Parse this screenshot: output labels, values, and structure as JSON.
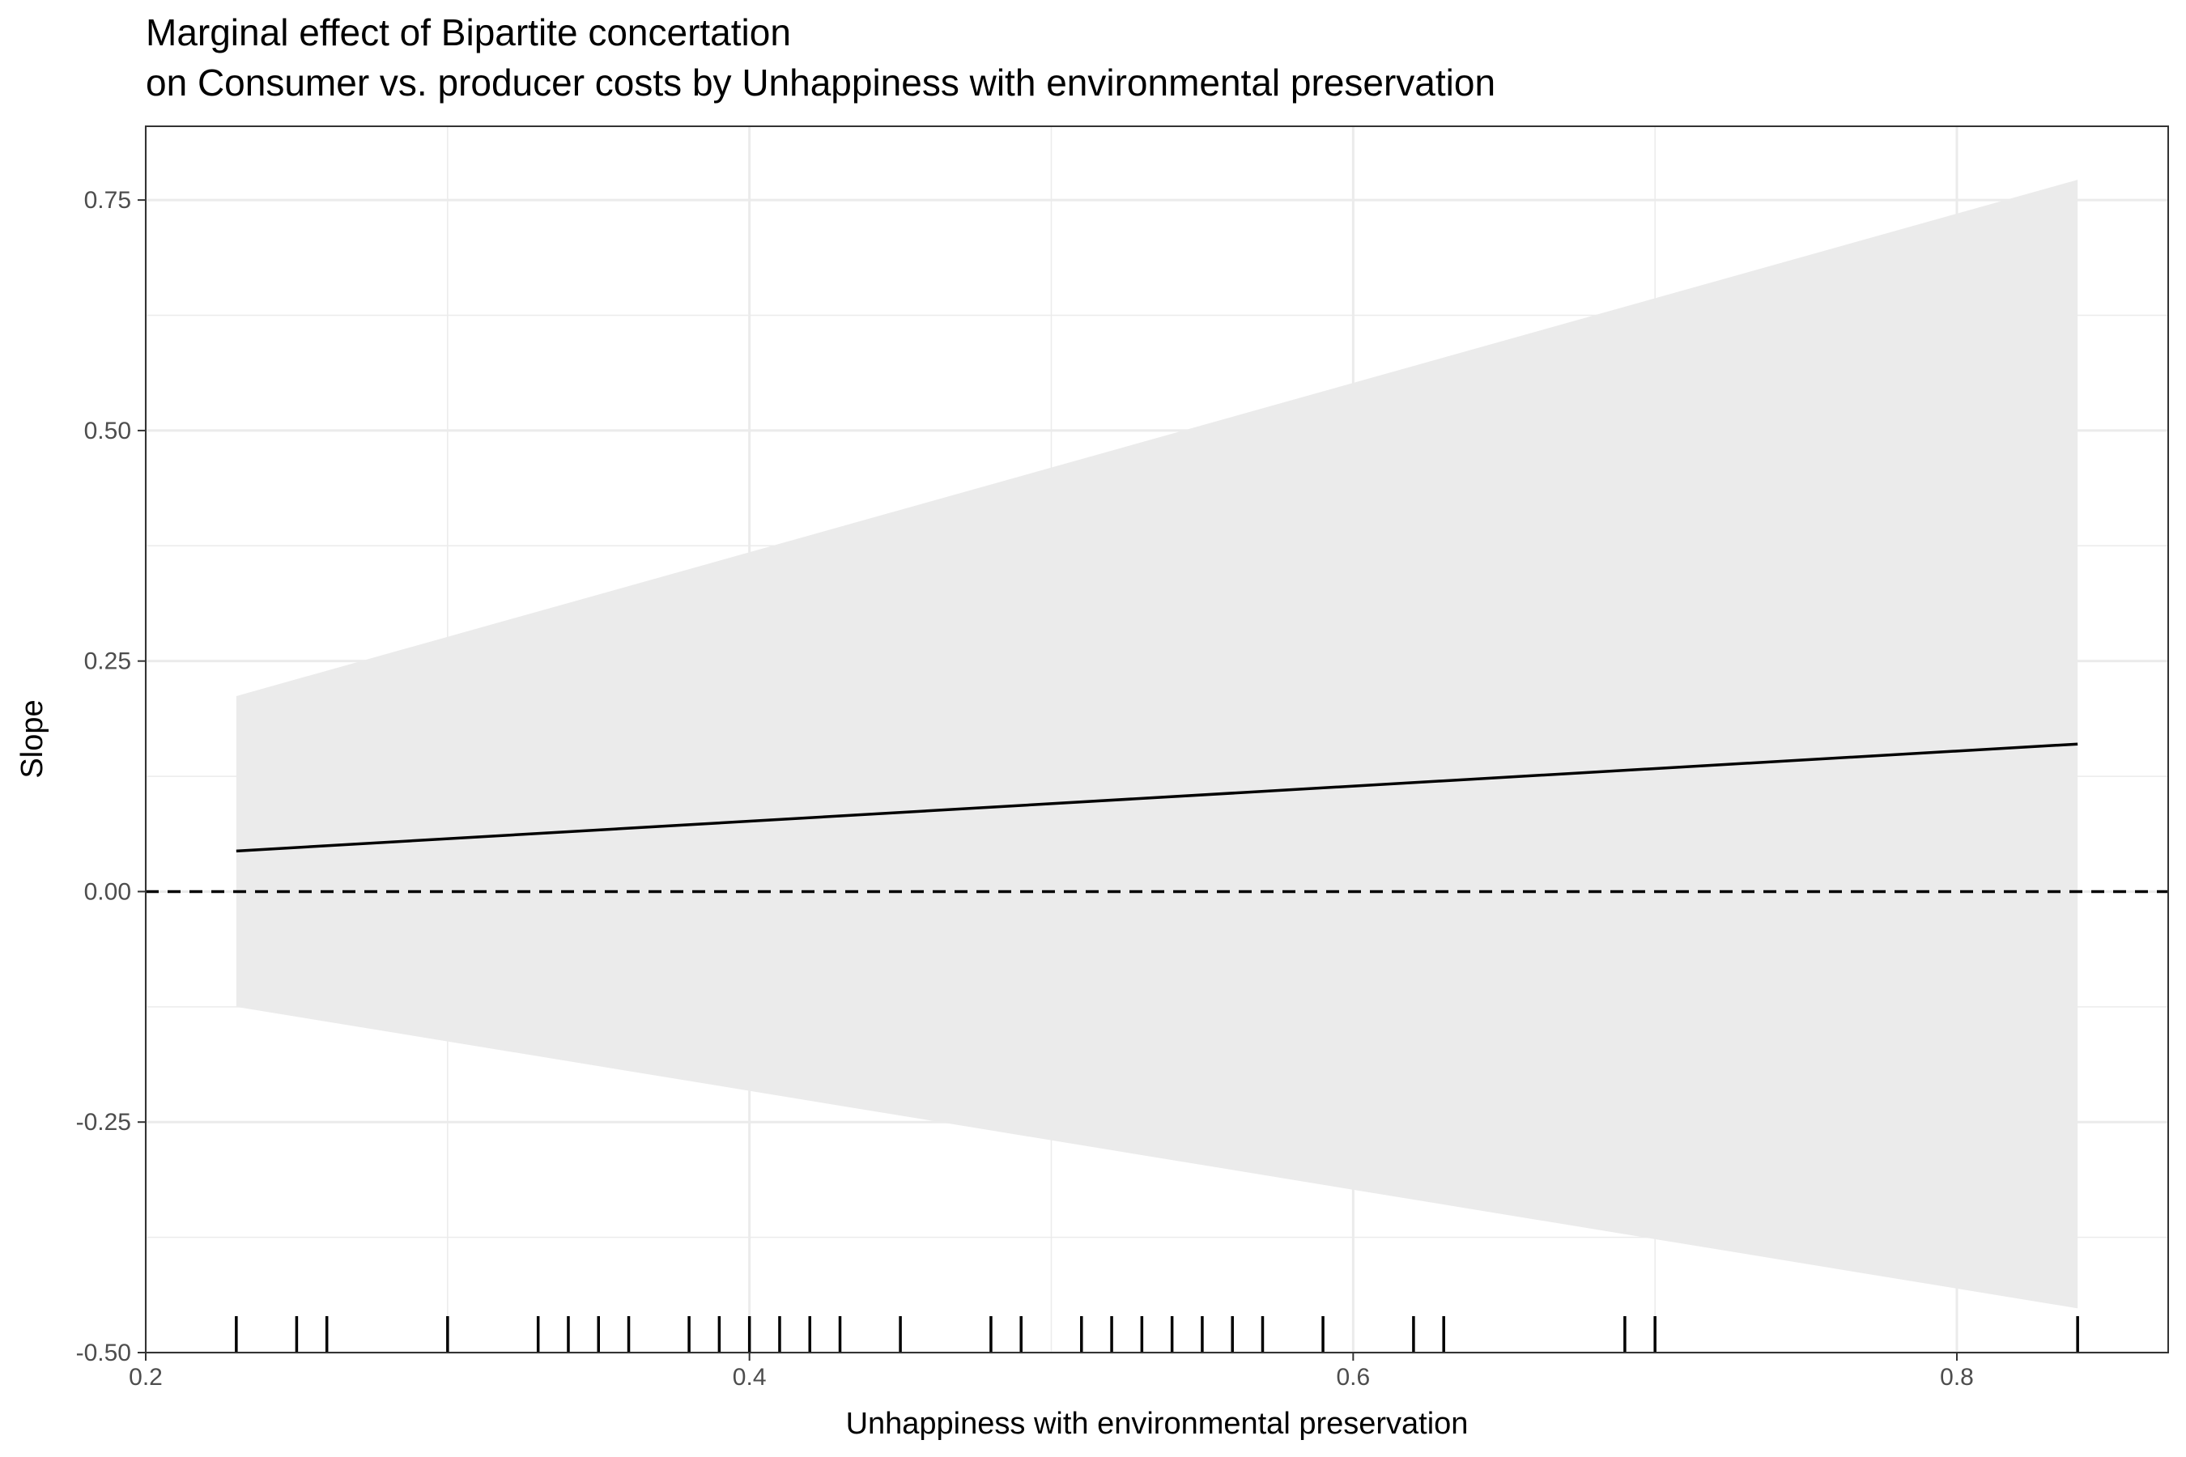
{
  "chart_data": {
    "type": "line",
    "title_lines": [
      "Marginal effect of Bipartite concertation",
      "on Consumer vs. producer costs by Unhappiness with environmental preservation"
    ],
    "xlabel": "Unhappiness with environmental preservation",
    "ylabel": "Slope",
    "xlim": [
      0.2,
      0.87
    ],
    "ylim": [
      -0.5,
      0.83
    ],
    "x_ticks": [
      0.2,
      0.4,
      0.6,
      0.8
    ],
    "x_tick_labels": [
      "0.2",
      "0.4",
      "0.6",
      "0.8"
    ],
    "y_ticks": [
      -0.5,
      -0.25,
      0,
      0.25,
      0.5,
      0.75
    ],
    "y_tick_labels": [
      "-0.50",
      "-0.25",
      "0.00",
      "0.25",
      "0.50",
      "0.75"
    ],
    "grid": true,
    "series": [
      {
        "x": [
          0.23,
          0.84
        ],
        "y": [
          0.044,
          0.16
        ],
        "lower": [
          -0.125,
          -0.452
        ],
        "upper": [
          0.212,
          0.772
        ]
      }
    ],
    "reference_line": {
      "y": 0,
      "style": "dashed"
    },
    "rug_x": [
      0.23,
      0.25,
      0.26,
      0.3,
      0.33,
      0.34,
      0.35,
      0.36,
      0.38,
      0.39,
      0.4,
      0.41,
      0.42,
      0.43,
      0.45,
      0.48,
      0.49,
      0.51,
      0.52,
      0.53,
      0.54,
      0.55,
      0.56,
      0.57,
      0.59,
      0.62,
      0.63,
      0.69,
      0.7,
      0.84
    ],
    "colors": {
      "band": "#ebebeb",
      "line": "#000000",
      "grid": "#ebebeb",
      "panel_border": "#333333"
    }
  }
}
